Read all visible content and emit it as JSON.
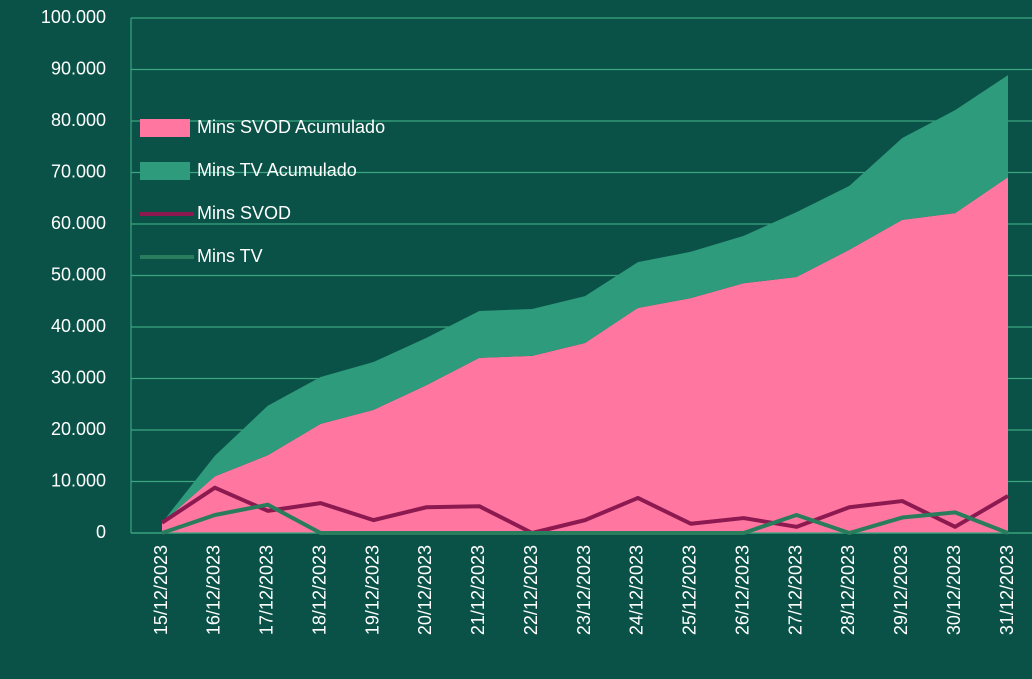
{
  "chart_data": {
    "type": "stacked_area_line",
    "categories": [
      "15/12/2023",
      "16/12/2023",
      "17/12/2023",
      "18/12/2023",
      "19/12/2023",
      "20/12/2023",
      "21/12/2023",
      "22/12/2023",
      "23/12/2023",
      "24/12/2023",
      "25/12/2023",
      "26/12/2023",
      "27/12/2023",
      "28/12/2023",
      "29/12/2023",
      "30/12/2023",
      "31/12/2023"
    ],
    "series": [
      {
        "name": "Mins SVOD Acumulado",
        "kind": "area",
        "color": "#ff77a0",
        "values": [
          2000,
          11000,
          15100,
          21200,
          23900,
          28700,
          34000,
          34400,
          36900,
          43700,
          45600,
          48500,
          49700,
          55000,
          60800,
          62100,
          69100
        ]
      },
      {
        "name": "Mins TV Acumulado",
        "kind": "area",
        "color": "#2e9b7c",
        "values": [
          0,
          4000,
          9600,
          9100,
          9300,
          9200,
          9100,
          9100,
          9100,
          8900,
          9000,
          9200,
          12600,
          12400,
          15900,
          20000,
          19800
        ]
      },
      {
        "name": "Mins SVOD",
        "kind": "line",
        "color": "#8c1a50",
        "values": [
          2000,
          8800,
          4300,
          5800,
          2500,
          5000,
          5200,
          0,
          2500,
          6800,
          1800,
          2900,
          1200,
          5000,
          6200,
          1200,
          7200
        ]
      },
      {
        "name": "Mins TV",
        "kind": "line",
        "color": "#2a7d5c",
        "values": [
          0,
          3500,
          5500,
          0,
          0,
          0,
          0,
          0,
          0,
          0,
          0,
          0,
          3500,
          0,
          3000,
          4000,
          0
        ]
      }
    ],
    "ylim": [
      0,
      100000
    ],
    "yticks": [
      0,
      {
        "value": 10000,
        "label": "10.000"
      },
      {
        "value": 20000,
        "label": "20.000"
      },
      {
        "value": 30000,
        "label": "30.000"
      },
      {
        "value": 40000,
        "label": "40.000"
      },
      {
        "value": 50000,
        "label": "50.000"
      },
      {
        "value": 60000,
        "label": "60.000"
      },
      {
        "value": 70000,
        "label": "70.000"
      },
      {
        "value": 80000,
        "label": "80.000"
      },
      {
        "value": 90000,
        "label": "90.000"
      },
      {
        "value": 100000,
        "label": "100.000"
      }
    ],
    "grid": true,
    "legend": "left"
  }
}
